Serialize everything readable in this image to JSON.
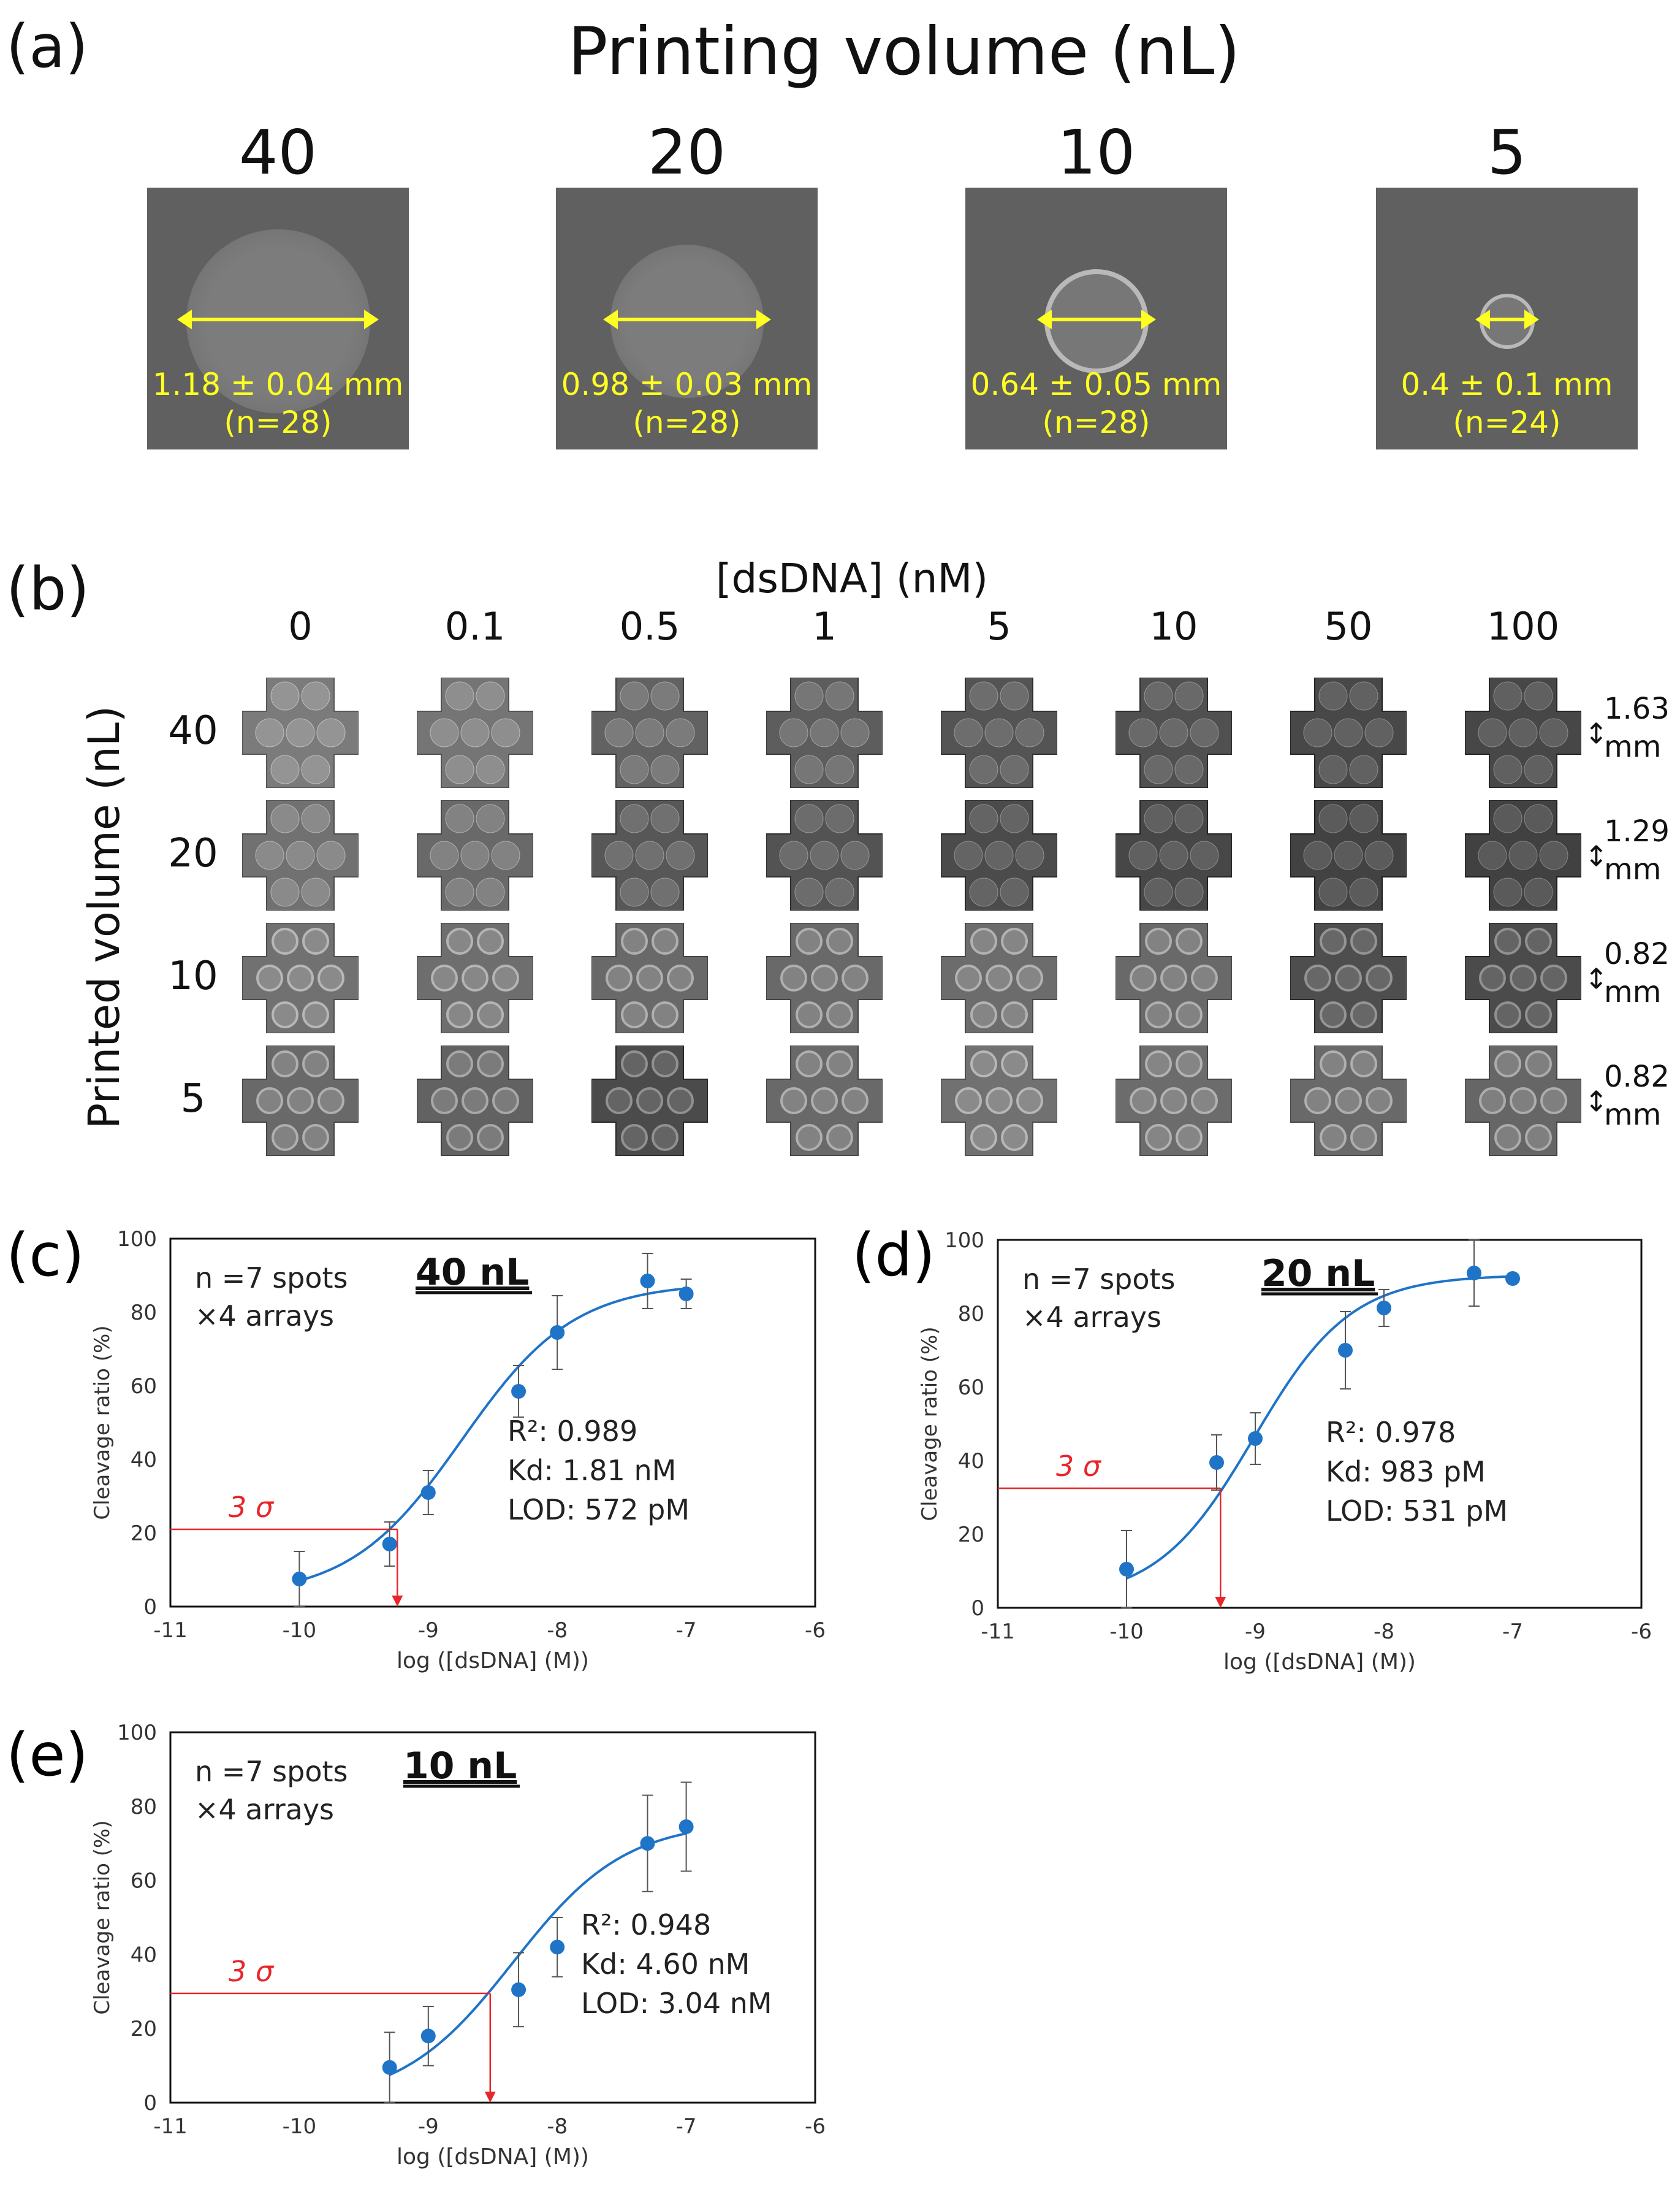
{
  "panel_a": {
    "label": "(a)",
    "title": "Printing volume (nL)",
    "spots": [
      {
        "volume": "40",
        "measure": "1.18 ± 0.04 mm",
        "n": "(n=28)"
      },
      {
        "volume": "20",
        "measure": "0.98 ± 0.03 mm",
        "n": "(n=28)"
      },
      {
        "volume": "10",
        "measure": "0.64 ± 0.05 mm",
        "n": "(n=28)"
      },
      {
        "volume": "5",
        "measure": "0.4 ± 0.1 mm",
        "n": "(n=24)"
      }
    ]
  },
  "panel_b": {
    "label": "(b)",
    "title": "[dsDNA] (nM)",
    "y_title": "Printed volume (nL)",
    "concentrations": [
      "0",
      "0.1",
      "0.5",
      "1",
      "5",
      "10",
      "50",
      "100"
    ],
    "rows": [
      {
        "volume": "40",
        "scale": "1.63",
        "unit": "mm",
        "brightness": [
          0.62,
          0.58,
          0.45,
          0.42,
          0.36,
          0.33,
          0.28,
          0.27
        ]
      },
      {
        "volume": "20",
        "scale": "1.29",
        "unit": "mm",
        "brightness": [
          0.55,
          0.5,
          0.38,
          0.35,
          0.3,
          0.27,
          0.24,
          0.23
        ]
      },
      {
        "volume": "10",
        "scale": "0.82",
        "unit": "mm",
        "brightness": [
          0.55,
          0.53,
          0.5,
          0.5,
          0.52,
          0.5,
          0.32,
          0.3
        ]
      },
      {
        "volume": "5",
        "scale": "0.82",
        "unit": "mm",
        "brightness": [
          0.5,
          0.45,
          0.3,
          0.5,
          0.55,
          0.52,
          0.5,
          0.48
        ]
      }
    ]
  },
  "chart_data": [
    {
      "type": "scatter",
      "panel_label": "(c)",
      "title": "40 nL",
      "xlabel": "log ([dsDNA] (M))",
      "ylabel": "Cleavage ratio (%)",
      "xlim": [
        -11,
        -6
      ],
      "ylim": [
        0,
        100
      ],
      "xticks": [
        "-11",
        "-10",
        "-9",
        "-8",
        "-7",
        "-6"
      ],
      "yticks": [
        "0",
        "20",
        "40",
        "60",
        "80",
        "100"
      ],
      "x": [
        -10,
        -9.3,
        -9,
        -8.3,
        -8,
        -7.3,
        -7
      ],
      "y": [
        7.5,
        17,
        31,
        58.5,
        74.5,
        88.5,
        85
      ],
      "err": [
        7.5,
        6,
        6,
        7,
        10,
        7.5,
        4
      ],
      "fit": {
        "bottom": 2.6,
        "top": 88,
        "logEC50": -8.74,
        "hill": 1.0
      },
      "threshold": {
        "label": "3 σ",
        "y": 21,
        "x": -9.24
      },
      "annotation_n": [
        "n =7 spots",
        "×4 arrays"
      ],
      "stats": [
        "R²: 0.989",
        "Kd: 1.81 nM",
        "LOD: 572 pM"
      ],
      "color": "#1f74c8",
      "threshold_color": "#e8262b"
    },
    {
      "type": "scatter",
      "panel_label": "(d)",
      "title": "20 nL",
      "xlabel": "log ([dsDNA] (M))",
      "ylabel": "Cleavage ratio (%)",
      "xlim": [
        -11,
        -6
      ],
      "ylim": [
        0,
        100
      ],
      "xticks": [
        "-11",
        "-10",
        "-9",
        "-8",
        "-7",
        "-6"
      ],
      "yticks": [
        "0",
        "20",
        "40",
        "60",
        "80",
        "100"
      ],
      "x": [
        -10,
        -9.3,
        -9,
        -8.3,
        -8,
        -7.3,
        -7
      ],
      "y": [
        10.5,
        39.5,
        46,
        70,
        81.5,
        91,
        89.5
      ],
      "err": [
        10.5,
        7.5,
        7,
        10.5,
        5,
        9,
        1
      ],
      "fit": {
        "bottom": 2.0,
        "top": 90.5,
        "logEC50": -9.01,
        "hill": 1.15
      },
      "threshold": {
        "label": "3 σ",
        "y": 32.5,
        "x": -9.27
      },
      "annotation_n": [
        "n =7 spots",
        "×4 arrays"
      ],
      "stats": [
        "R²: 0.978",
        "Kd: 983 pM",
        "LOD: 531 pM"
      ],
      "color": "#1f74c8",
      "threshold_color": "#e8262b"
    },
    {
      "type": "scatter",
      "panel_label": "(e)",
      "title": "10 nL",
      "xlabel": "log ([dsDNA] (M))",
      "ylabel": "Cleavage ratio (%)",
      "xlim": [
        -11,
        -6
      ],
      "ylim": [
        0,
        100
      ],
      "xticks": [
        "-11",
        "-10",
        "-9",
        "-8",
        "-7",
        "-6"
      ],
      "yticks": [
        "0",
        "20",
        "40",
        "60",
        "80",
        "100"
      ],
      "x": [
        -9.3,
        -9,
        -8.3,
        -8,
        -7.3,
        -7
      ],
      "y": [
        9.5,
        18,
        30.5,
        42,
        70,
        74.5
      ],
      "err": [
        9.5,
        8,
        10,
        8,
        13,
        12
      ],
      "fit": {
        "bottom": 0,
        "top": 76,
        "logEC50": -8.34,
        "hill": 1.0
      },
      "threshold": {
        "label": "3 σ",
        "y": 29.5,
        "x": -8.52
      },
      "annotation_n": [
        "n =7 spots",
        "×4 arrays"
      ],
      "stats": [
        "R²: 0.948",
        "Kd: 4.60 nM",
        "LOD: 3.04 nM"
      ],
      "color": "#1f74c8",
      "threshold_color": "#e8262b"
    }
  ]
}
